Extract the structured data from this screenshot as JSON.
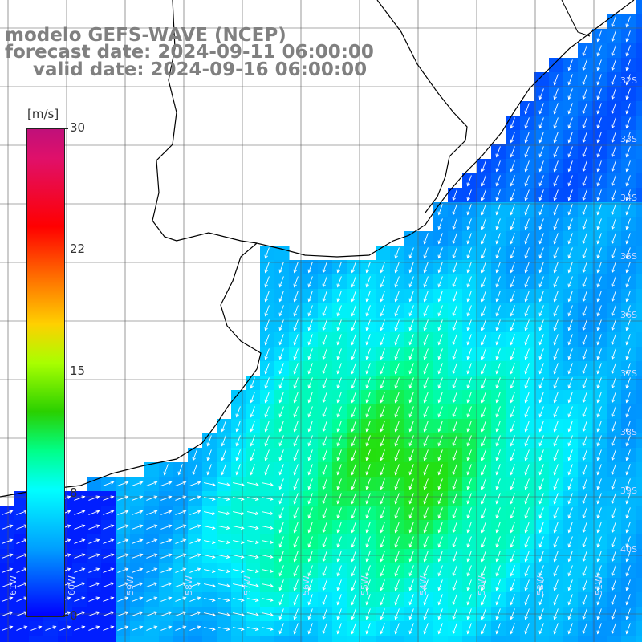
{
  "title": {
    "line1": "modelo GEFS-WAVE (NCEP)",
    "line2": "forecast date: 2024-09-11 06:00:00",
    "line3": "valid date: 2024-09-16 06:00:00"
  },
  "colorbar": {
    "unit": "[m/s]",
    "labels": [
      "30",
      "22",
      "15",
      "8",
      "0"
    ],
    "colors": [
      "#c0107a",
      "#ff0000",
      "#ff6a00",
      "#ffd000",
      "#2ad000",
      "#00ffff",
      "#00a0ff",
      "#0000ff"
    ]
  },
  "lat_labels": [
    "32S",
    "33S",
    "34S",
    "35S",
    "36S",
    "37S",
    "38S",
    "39S",
    "40S"
  ],
  "lon_labels": [
    "61W",
    "60W",
    "59W",
    "58W",
    "57W",
    "56W",
    "55W",
    "54W",
    "53W",
    "52W",
    "51W"
  ],
  "icons": {
    "wind_arrow": "arrow-icon"
  }
}
